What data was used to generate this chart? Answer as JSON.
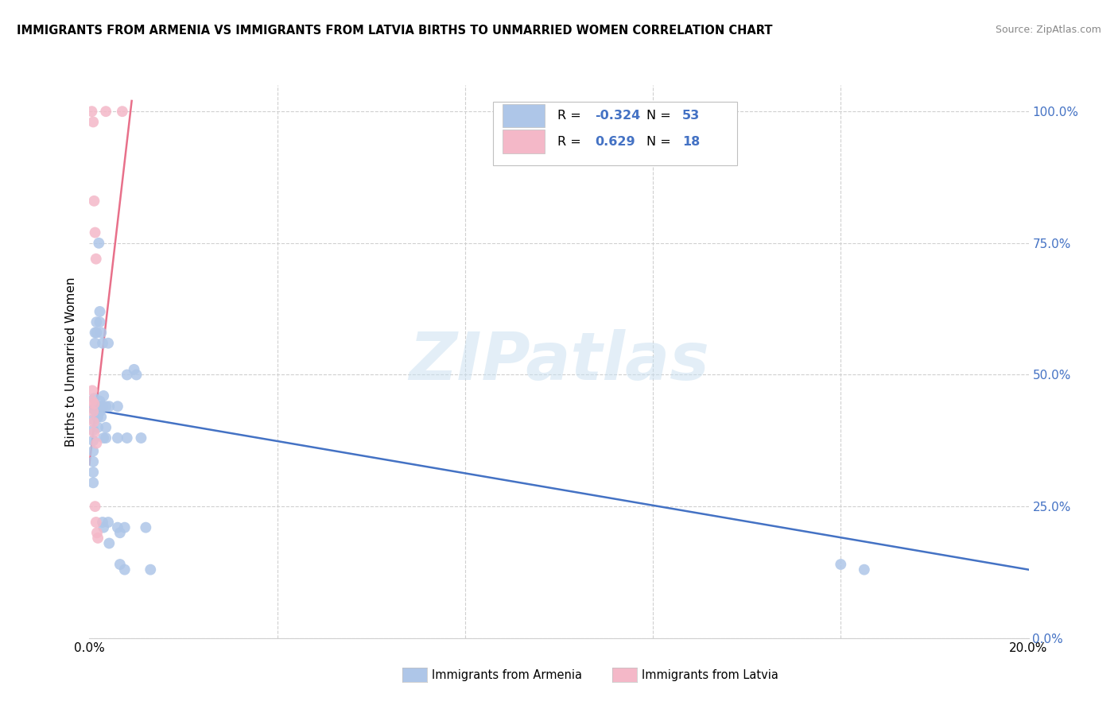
{
  "title": "IMMIGRANTS FROM ARMENIA VS IMMIGRANTS FROM LATVIA BIRTHS TO UNMARRIED WOMEN CORRELATION CHART",
  "source": "Source: ZipAtlas.com",
  "ylabel": "Births to Unmarried Women",
  "armenia_color": "#aec6e8",
  "latvia_color": "#f4b8c8",
  "armenia_line_color": "#4472c4",
  "latvia_line_color": "#e8708a",
  "watermark": "ZIPatlas",
  "armenia_scatter": [
    [
      0.0008,
      0.435
    ],
    [
      0.0008,
      0.415
    ],
    [
      0.0008,
      0.395
    ],
    [
      0.0008,
      0.375
    ],
    [
      0.0008,
      0.355
    ],
    [
      0.0008,
      0.335
    ],
    [
      0.0008,
      0.315
    ],
    [
      0.0008,
      0.295
    ],
    [
      0.001,
      0.455
    ],
    [
      0.001,
      0.435
    ],
    [
      0.0012,
      0.58
    ],
    [
      0.0012,
      0.56
    ],
    [
      0.0015,
      0.6
    ],
    [
      0.0015,
      0.58
    ],
    [
      0.0016,
      0.44
    ],
    [
      0.0016,
      0.42
    ],
    [
      0.0018,
      0.42
    ],
    [
      0.0018,
      0.4
    ],
    [
      0.002,
      0.75
    ],
    [
      0.0022,
      0.62
    ],
    [
      0.0022,
      0.6
    ],
    [
      0.0022,
      0.45
    ],
    [
      0.0022,
      0.43
    ],
    [
      0.0025,
      0.58
    ],
    [
      0.0025,
      0.44
    ],
    [
      0.0025,
      0.42
    ],
    [
      0.0028,
      0.56
    ],
    [
      0.0028,
      0.44
    ],
    [
      0.0028,
      0.22
    ],
    [
      0.003,
      0.46
    ],
    [
      0.003,
      0.38
    ],
    [
      0.003,
      0.21
    ],
    [
      0.0035,
      0.44
    ],
    [
      0.0035,
      0.4
    ],
    [
      0.0035,
      0.38
    ],
    [
      0.004,
      0.56
    ],
    [
      0.004,
      0.22
    ],
    [
      0.0042,
      0.44
    ],
    [
      0.0042,
      0.18
    ],
    [
      0.006,
      0.44
    ],
    [
      0.006,
      0.38
    ],
    [
      0.006,
      0.21
    ],
    [
      0.0065,
      0.2
    ],
    [
      0.0065,
      0.14
    ],
    [
      0.0075,
      0.21
    ],
    [
      0.0075,
      0.13
    ],
    [
      0.008,
      0.5
    ],
    [
      0.008,
      0.38
    ],
    [
      0.0095,
      0.51
    ],
    [
      0.01,
      0.5
    ],
    [
      0.011,
      0.38
    ],
    [
      0.012,
      0.21
    ],
    [
      0.013,
      0.13
    ],
    [
      0.16,
      0.14
    ],
    [
      0.165,
      0.13
    ]
  ],
  "latvia_scatter": [
    [
      0.0005,
      1.0
    ],
    [
      0.0008,
      0.98
    ],
    [
      0.001,
      0.83
    ],
    [
      0.0012,
      0.77
    ],
    [
      0.0014,
      0.72
    ],
    [
      0.0006,
      0.45
    ],
    [
      0.0008,
      0.43
    ],
    [
      0.0009,
      0.41
    ],
    [
      0.001,
      0.39
    ],
    [
      0.0012,
      0.25
    ],
    [
      0.0014,
      0.22
    ],
    [
      0.0016,
      0.2
    ],
    [
      0.0018,
      0.19
    ],
    [
      0.0035,
      1.0
    ],
    [
      0.007,
      1.0
    ],
    [
      0.0006,
      0.47
    ],
    [
      0.001,
      0.445
    ],
    [
      0.0015,
      0.37
    ]
  ],
  "xlim": [
    0.0,
    0.2
  ],
  "ylim": [
    0.0,
    1.05
  ],
  "armenia_line": [
    0.0,
    0.435,
    0.2,
    0.13
  ],
  "latvia_line": [
    0.0,
    0.33,
    0.009,
    1.02
  ]
}
